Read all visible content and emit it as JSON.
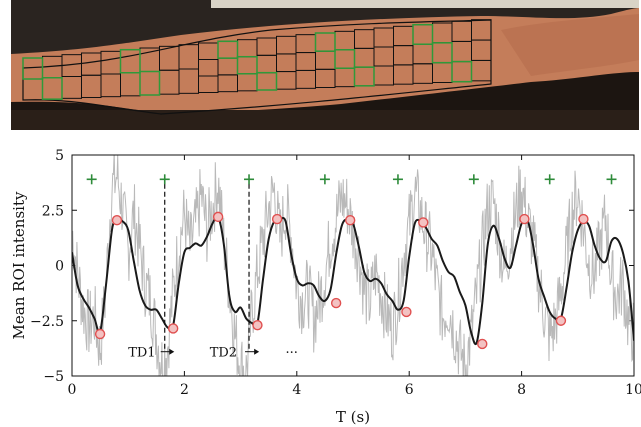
{
  "photo": {
    "description_icon": "forearm-roi-grid-photo",
    "colors": {
      "background": "#1b1410",
      "skin": "#c8825f",
      "grid_black": "#111111",
      "grid_green": "#2f9a3a"
    }
  },
  "chart_data": {
    "type": "line",
    "title": "",
    "xlabel": "T (s)",
    "ylabel": "Mean ROI intensity",
    "xlim": [
      0,
      10
    ],
    "ylim": [
      -5,
      5
    ],
    "xticks": [
      0,
      2,
      4,
      6,
      8,
      10
    ],
    "yticks": [
      5,
      2.5,
      0,
      -2.5,
      -5
    ],
    "ytick_labels": [
      "5",
      "2.5",
      "0",
      "−2.5",
      "−5"
    ],
    "series": [
      {
        "role": "raw",
        "color": "#b9b9b9",
        "x": [
          0.0,
          0.1,
          0.2,
          0.3,
          0.4,
          0.5,
          0.6,
          0.7,
          0.8,
          0.9,
          1.0,
          1.1,
          1.2,
          1.3,
          1.4,
          1.5,
          1.6,
          1.7,
          1.8,
          1.9,
          2.0,
          2.1,
          2.2,
          2.3,
          2.4,
          2.5,
          2.6,
          2.7,
          2.8,
          2.9,
          3.0,
          3.1,
          3.2,
          3.3,
          3.4,
          3.5,
          3.6,
          3.7,
          3.8,
          3.9,
          4.0,
          4.1,
          4.2,
          4.3,
          4.4,
          4.5,
          4.6,
          4.7,
          4.8,
          4.9,
          5.0,
          5.1,
          5.2,
          5.3,
          5.4,
          5.5,
          5.6,
          5.7,
          5.8,
          5.9,
          6.0,
          6.1,
          6.2,
          6.3,
          6.4,
          6.5,
          6.6,
          6.7,
          6.8,
          6.9,
          7.0,
          7.1,
          7.2,
          7.3,
          7.4,
          7.5,
          7.6,
          7.7,
          7.8,
          7.9,
          8.0,
          8.1,
          8.2,
          8.3,
          8.4,
          8.5,
          8.6,
          8.7,
          8.8,
          8.9,
          9.0,
          9.1,
          9.2,
          9.3,
          9.4,
          9.5,
          9.6,
          9.7,
          9.8,
          9.9,
          10.0
        ],
        "y": [
          1.6,
          -0.4,
          -1.9,
          -2.7,
          -2.3,
          -3.8,
          -1.2,
          3.4,
          4.1,
          2.6,
          0.6,
          2.4,
          0.9,
          -0.8,
          -1.6,
          -3.1,
          -4.4,
          -3.7,
          -1.2,
          0.9,
          2.3,
          0.8,
          1.8,
          3.2,
          1.6,
          2.6,
          3.8,
          1.1,
          -1.1,
          -3.2,
          -4.5,
          -4.8,
          -2.2,
          -0.3,
          1.2,
          2.6,
          3.4,
          1.2,
          2.6,
          1.4,
          -0.9,
          -1.6,
          -1.1,
          -2.4,
          -1.6,
          -0.4,
          1.2,
          2.1,
          3.1,
          2.7,
          1.6,
          0.6,
          -1.1,
          -1.7,
          -0.3,
          -1.2,
          -2.2,
          -2.9,
          -1.5,
          0.5,
          1.8,
          3.3,
          2.4,
          1.4,
          0.6,
          -1.1,
          -2.3,
          -1.8,
          -2.9,
          -3.8,
          -4.6,
          -3.2,
          -1.4,
          0.7,
          2.6,
          2.9,
          1.2,
          -0.3,
          1.1,
          2.4,
          3.6,
          2.1,
          1.1,
          -0.6,
          -2.1,
          -3.3,
          -2.6,
          -1.2,
          0.6,
          2.4,
          3.3,
          1.7,
          0.1,
          -0.3,
          0.9,
          2.2,
          -0.6,
          -1.4,
          -0.8,
          -2.6,
          -3.1
        ]
      },
      {
        "role": "filtered",
        "color": "#1a1a1a",
        "x": [
          0.0,
          0.1,
          0.2,
          0.3,
          0.4,
          0.5,
          0.6,
          0.7,
          0.75,
          0.8,
          0.9,
          1.0,
          1.1,
          1.2,
          1.3,
          1.4,
          1.5,
          1.6,
          1.7,
          1.8,
          1.9,
          2.0,
          2.1,
          2.2,
          2.3,
          2.4,
          2.5,
          2.6,
          2.7,
          2.8,
          2.9,
          3.0,
          3.1,
          3.2,
          3.3,
          3.4,
          3.5,
          3.6,
          3.7,
          3.8,
          3.9,
          4.0,
          4.1,
          4.2,
          4.3,
          4.4,
          4.5,
          4.6,
          4.7,
          4.8,
          4.9,
          5.0,
          5.1,
          5.2,
          5.3,
          5.4,
          5.5,
          5.6,
          5.7,
          5.8,
          5.9,
          6.0,
          6.1,
          6.2,
          6.3,
          6.4,
          6.5,
          6.6,
          6.7,
          6.8,
          6.9,
          7.0,
          7.1,
          7.2,
          7.3,
          7.4,
          7.5,
          7.6,
          7.7,
          7.8,
          7.9,
          8.0,
          8.1,
          8.2,
          8.3,
          8.4,
          8.5,
          8.6,
          8.7,
          8.8,
          8.9,
          9.0,
          9.1,
          9.2,
          9.3,
          9.4,
          9.5,
          9.6,
          9.7,
          9.8,
          9.9,
          10.0
        ],
        "y": [
          0.6,
          -0.9,
          -1.5,
          -1.9,
          -2.4,
          -3.0,
          -1.0,
          1.4,
          2.0,
          2.1,
          2.0,
          1.6,
          0.2,
          -1.1,
          -1.8,
          -2.0,
          -2.0,
          -2.4,
          -2.8,
          -2.7,
          -0.8,
          0.6,
          0.8,
          1.0,
          0.9,
          1.3,
          1.9,
          2.2,
          1.0,
          -1.4,
          -2.1,
          -1.9,
          -2.4,
          -2.6,
          -2.6,
          -0.6,
          1.2,
          2.0,
          2.1,
          2.0,
          0.5,
          -0.6,
          -0.9,
          -0.8,
          -0.9,
          -1.4,
          -1.6,
          -1.1,
          0.5,
          1.8,
          2.1,
          1.9,
          0.9,
          -0.3,
          -0.7,
          -0.6,
          -0.8,
          -1.3,
          -1.6,
          -2.0,
          -1.6,
          0.4,
          1.9,
          2.0,
          1.7,
          1.2,
          0.9,
          0.2,
          -0.3,
          -0.5,
          -1.2,
          -1.8,
          -3.0,
          -3.5,
          -1.7,
          1.0,
          1.8,
          1.2,
          0.3,
          -0.1,
          0.9,
          1.9,
          2.1,
          1.0,
          -0.6,
          -1.4,
          -2.1,
          -2.4,
          -2.4,
          -1.0,
          0.6,
          1.6,
          2.0,
          1.8,
          0.9,
          0.3,
          0.2,
          1.1,
          1.2,
          0.6,
          -0.7,
          -3.4
        ]
      }
    ],
    "peak_markers": [
      {
        "x": 0.5,
        "y": -3.1
      },
      {
        "x": 0.8,
        "y": 2.05
      },
      {
        "x": 1.8,
        "y": -2.85
      },
      {
        "x": 2.6,
        "y": 2.2
      },
      {
        "x": 3.3,
        "y": -2.7
      },
      {
        "x": 3.65,
        "y": 2.1
      },
      {
        "x": 4.7,
        "y": -1.7
      },
      {
        "x": 4.95,
        "y": 2.05
      },
      {
        "x": 5.95,
        "y": -2.1
      },
      {
        "x": 6.25,
        "y": 1.95
      },
      {
        "x": 7.3,
        "y": -3.55
      },
      {
        "x": 8.05,
        "y": 2.1
      },
      {
        "x": 8.7,
        "y": -2.5
      },
      {
        "x": 9.1,
        "y": 2.1
      }
    ],
    "plus_markers": [
      {
        "x": 0.35,
        "y": 3.9
      },
      {
        "x": 1.65,
        "y": 3.9
      },
      {
        "x": 3.15,
        "y": 3.9
      },
      {
        "x": 4.5,
        "y": 3.9
      },
      {
        "x": 5.8,
        "y": 3.9
      },
      {
        "x": 7.15,
        "y": 3.9
      },
      {
        "x": 8.5,
        "y": 3.9
      },
      {
        "x": 9.6,
        "y": 3.9
      }
    ],
    "dashed_lines": [
      {
        "x": 1.65,
        "y_top": 3.7,
        "y_bottom": -3.9
      },
      {
        "x": 3.15,
        "y_top": 3.7,
        "y_bottom": -3.9
      }
    ],
    "annotations": [
      {
        "text": "TD1",
        "x": 1.0,
        "y": -3.9,
        "arrow_from": 1.65,
        "arrow_to": 1.82
      },
      {
        "text": "TD2",
        "x": 2.45,
        "y": -3.9,
        "arrow_from": 3.15,
        "arrow_to": 3.33
      },
      {
        "text": "···",
        "x": 3.8,
        "y": -3.9
      }
    ],
    "colors": {
      "raw": "#b9b9b9",
      "filtered": "#1a1a1a",
      "marker_ring": "#e05050",
      "plus": "#2e8b3a",
      "axes": "#111111"
    }
  }
}
